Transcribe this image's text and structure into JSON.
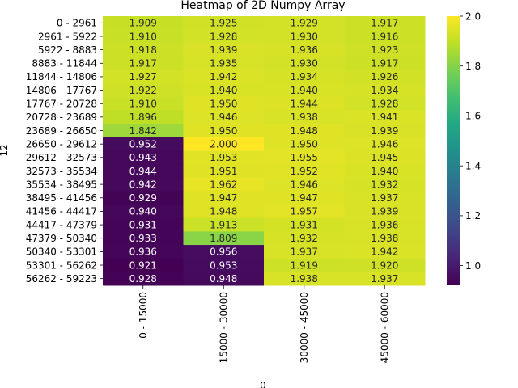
{
  "chart_data": {
    "type": "heatmap",
    "title": "Heatmap of 2D Numpy Array",
    "xlabel": "0",
    "ylabel": "12",
    "x_categories": [
      "0 - 15000",
      "15000 - 30000",
      "30000 - 45000",
      "45000 - 60000"
    ],
    "y_categories": [
      "0 - 2961",
      "2961 - 5922",
      "5922 - 8883",
      "8883 - 11844",
      "11844 - 14806",
      "14806 - 17767",
      "17767 - 20728",
      "20728 - 23689",
      "23689 - 26650",
      "26650 - 29612",
      "29612 - 32573",
      "32573 - 35534",
      "35534 - 38495",
      "38495 - 41456",
      "41456 - 44417",
      "44417 - 47379",
      "47379 - 50340",
      "50340 - 53301",
      "53301 - 56262",
      "56262 - 59223"
    ],
    "values": [
      [
        1.909,
        1.925,
        1.929,
        1.917
      ],
      [
        1.91,
        1.928,
        1.93,
        1.916
      ],
      [
        1.918,
        1.939,
        1.936,
        1.923
      ],
      [
        1.917,
        1.935,
        1.93,
        1.917
      ],
      [
        1.927,
        1.942,
        1.934,
        1.926
      ],
      [
        1.922,
        1.94,
        1.94,
        1.934
      ],
      [
        1.91,
        1.95,
        1.944,
        1.928
      ],
      [
        1.896,
        1.946,
        1.938,
        1.941
      ],
      [
        1.842,
        1.95,
        1.948,
        1.939
      ],
      [
        0.952,
        2.0,
        1.95,
        1.946
      ],
      [
        0.943,
        1.953,
        1.955,
        1.945
      ],
      [
        0.944,
        1.951,
        1.952,
        1.94
      ],
      [
        0.942,
        1.962,
        1.946,
        1.932
      ],
      [
        0.929,
        1.947,
        1.947,
        1.937
      ],
      [
        0.94,
        1.948,
        1.957,
        1.939
      ],
      [
        0.931,
        1.913,
        1.931,
        1.936
      ],
      [
        0.933,
        1.809,
        1.932,
        1.938
      ],
      [
        0.936,
        0.956,
        1.937,
        1.942
      ],
      [
        0.921,
        0.953,
        1.919,
        1.92
      ],
      [
        0.928,
        0.948,
        1.938,
        1.937
      ]
    ],
    "colormap": "viridis",
    "vmin": 0.921,
    "vmax": 2.0,
    "colorbar_ticks": [
      "1.0",
      "1.2",
      "1.4",
      "1.6",
      "1.8",
      "2.0"
    ],
    "colorbar_tick_values": [
      1.0,
      1.2,
      1.4,
      1.6,
      1.8,
      2.0
    ]
  }
}
